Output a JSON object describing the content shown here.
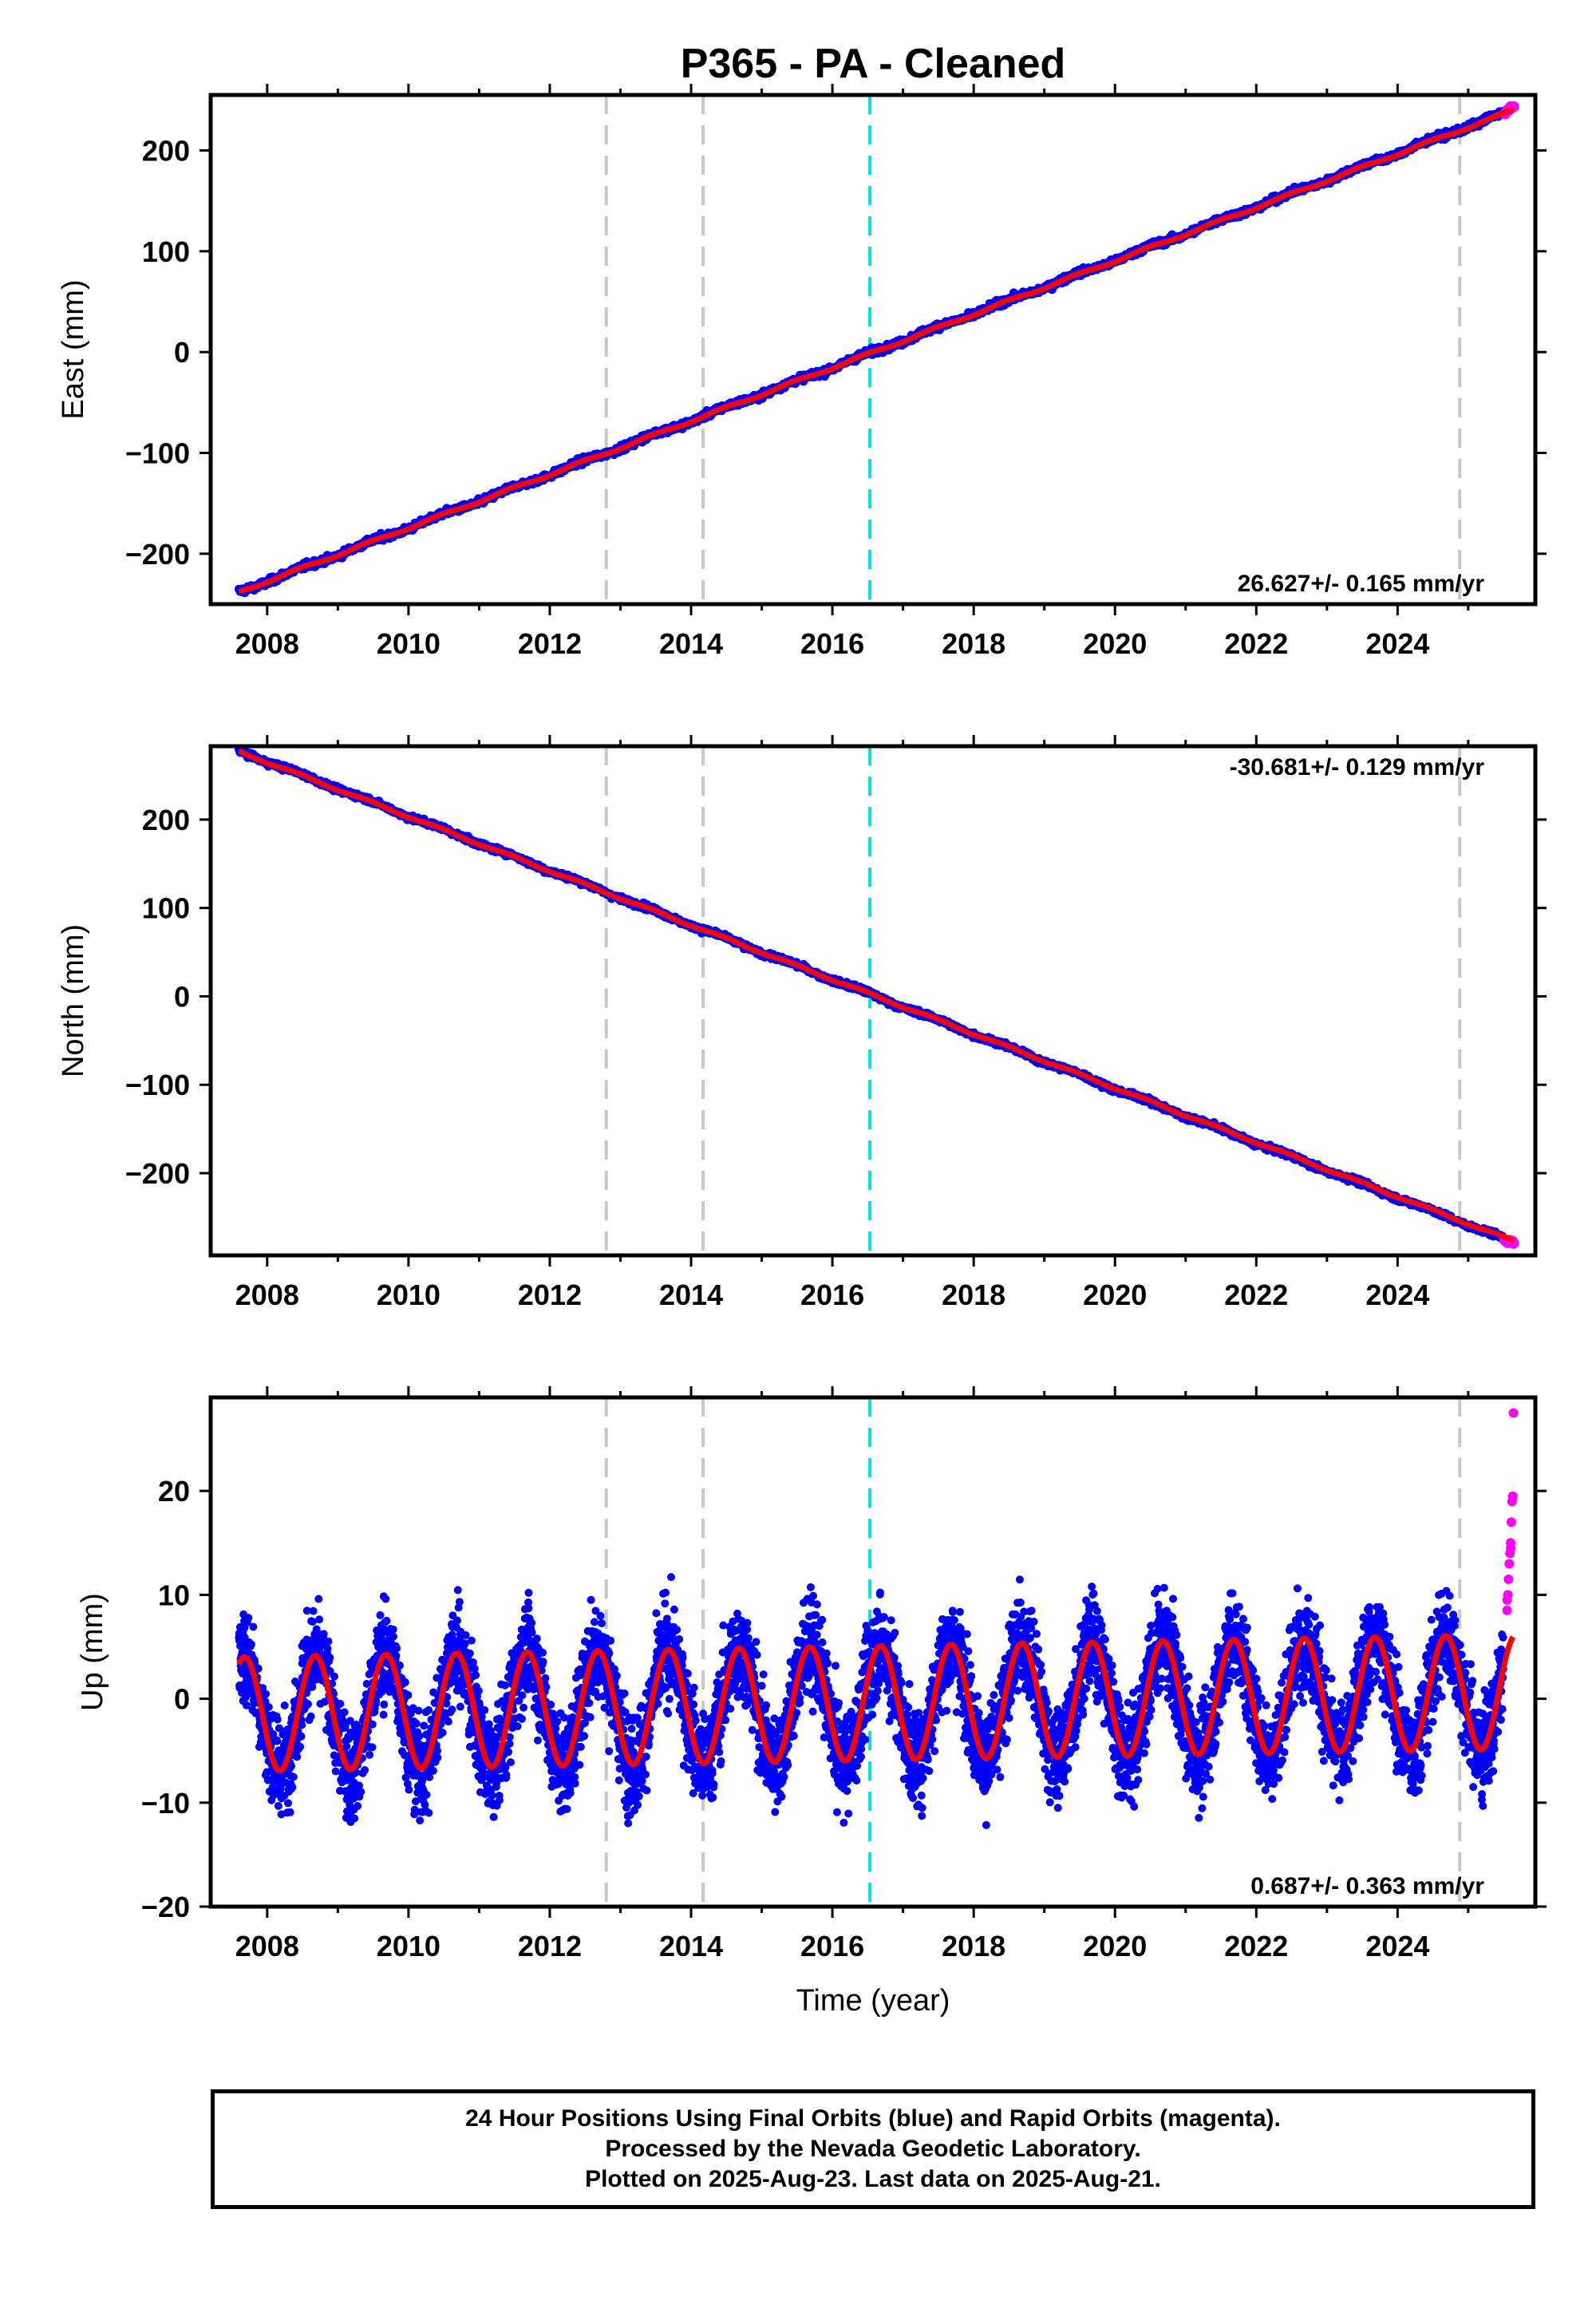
{
  "title": "P365  - PA - Cleaned",
  "footer": {
    "line1": "24 Hour Positions Using Final Orbits (blue) and Rapid Orbits (magenta).",
    "line2": "Processed by the Nevada Geodetic Laboratory.",
    "line3": "Plotted on 2025-Aug-23. Last data on 2025-Aug-21."
  },
  "colors": {
    "final_points": "#0000ff",
    "rapid_points": "#ff00ff",
    "model_line": "#ff0000",
    "equipment_change": "#c8c8c8",
    "earthquake": "#00e5e5"
  },
  "chart_data": [
    {
      "type": "scatter",
      "ylabel": "East (mm)",
      "xlabel": "",
      "xlim": [
        2007.2,
        2025.95
      ],
      "ylim": [
        -250,
        255
      ],
      "xticks": [
        "2008",
        "2010",
        "2012",
        "2014",
        "2016",
        "2018",
        "2020",
        "2022",
        "2024"
      ],
      "yticks": [
        "-200",
        "-100",
        "0",
        "100",
        "200"
      ],
      "rate_text": "26.627+/- 0.165 mm/yr",
      "rate_position": "bottom-right",
      "series": [
        {
          "role": "final",
          "x_start": 2007.6,
          "x_end": 2025.5,
          "y_start": -238.0,
          "y_end": 237.0,
          "noise": 2.2
        },
        {
          "role": "rapid",
          "x_start": 2025.52,
          "x_end": 2025.64,
          "y_start": 236.0,
          "y_end": 245.0
        },
        {
          "role": "model",
          "x_start": 2007.6,
          "x_end": 2025.64,
          "y_start": -238.0,
          "y_end": 240.0
        }
      ],
      "vertical_lines": [
        {
          "x": 2012.8,
          "kind": "equipment_change"
        },
        {
          "x": 2014.17,
          "kind": "equipment_change"
        },
        {
          "x": 2016.53,
          "kind": "earthquake"
        },
        {
          "x": 2024.88,
          "kind": "equipment_change"
        }
      ]
    },
    {
      "type": "scatter",
      "ylabel": "North (mm)",
      "xlabel": "",
      "xlim": [
        2007.2,
        2025.95
      ],
      "ylim": [
        -293,
        283
      ],
      "xticks": [
        "2008",
        "2010",
        "2012",
        "2014",
        "2016",
        "2018",
        "2020",
        "2022",
        "2024"
      ],
      "yticks": [
        "-200",
        "-100",
        "0",
        "100",
        "200"
      ],
      "rate_text": "-30.681+/- 0.129 mm/yr",
      "rate_position": "top-right",
      "series": [
        {
          "role": "final",
          "x_start": 2007.6,
          "x_end": 2025.5,
          "y_start": 278.0,
          "y_end": -274.0,
          "noise": 2.0
        },
        {
          "role": "rapid",
          "x_start": 2025.52,
          "x_end": 2025.64,
          "y_start": -275.0,
          "y_end": -279.0
        },
        {
          "role": "model",
          "x_start": 2007.6,
          "x_end": 2025.64,
          "y_start": 277.0,
          "y_end": -277.0
        }
      ],
      "vertical_lines": [
        {
          "x": 2012.8,
          "kind": "equipment_change"
        },
        {
          "x": 2014.17,
          "kind": "equipment_change"
        },
        {
          "x": 2016.53,
          "kind": "earthquake"
        },
        {
          "x": 2024.88,
          "kind": "equipment_change"
        }
      ]
    },
    {
      "type": "scatter",
      "ylabel": "Up (mm)",
      "xlabel": "Time (year)",
      "xlim": [
        2007.2,
        2025.95
      ],
      "ylim": [
        -20,
        29
      ],
      "xticks": [
        "2008",
        "2010",
        "2012",
        "2014",
        "2016",
        "2018",
        "2020",
        "2022",
        "2024"
      ],
      "yticks": [
        "-20",
        "-10",
        "0",
        "10",
        "20"
      ],
      "rate_text": "0.687+/- 0.363 mm/yr",
      "rate_position": "bottom-right",
      "seasonal_model": {
        "offset": -1.5,
        "trend_per_year": 0.12,
        "annual_amplitude": 5.5,
        "peak_phase_year_fraction": 0.68,
        "noise": 3.2
      },
      "series": [
        {
          "role": "final",
          "x_start": 2007.6,
          "x_end": 2025.5
        },
        {
          "role": "rapid",
          "x": [
            2025.55,
            2025.56,
            2025.57,
            2025.58,
            2025.59,
            2025.6,
            2025.61,
            2025.62,
            2025.63,
            2025.64,
            2025.55,
            2025.6
          ],
          "y": [
            8.5,
            10.0,
            11.5,
            13.0,
            14.0,
            14.5,
            17.0,
            19.0,
            19.5,
            27.5,
            9.5,
            15.0
          ]
        },
        {
          "role": "model",
          "x_start": 2007.6,
          "x_end": 2025.64
        }
      ],
      "vertical_lines": [
        {
          "x": 2012.8,
          "kind": "equipment_change"
        },
        {
          "x": 2014.17,
          "kind": "equipment_change"
        },
        {
          "x": 2016.53,
          "kind": "earthquake"
        },
        {
          "x": 2024.88,
          "kind": "equipment_change"
        }
      ]
    }
  ]
}
